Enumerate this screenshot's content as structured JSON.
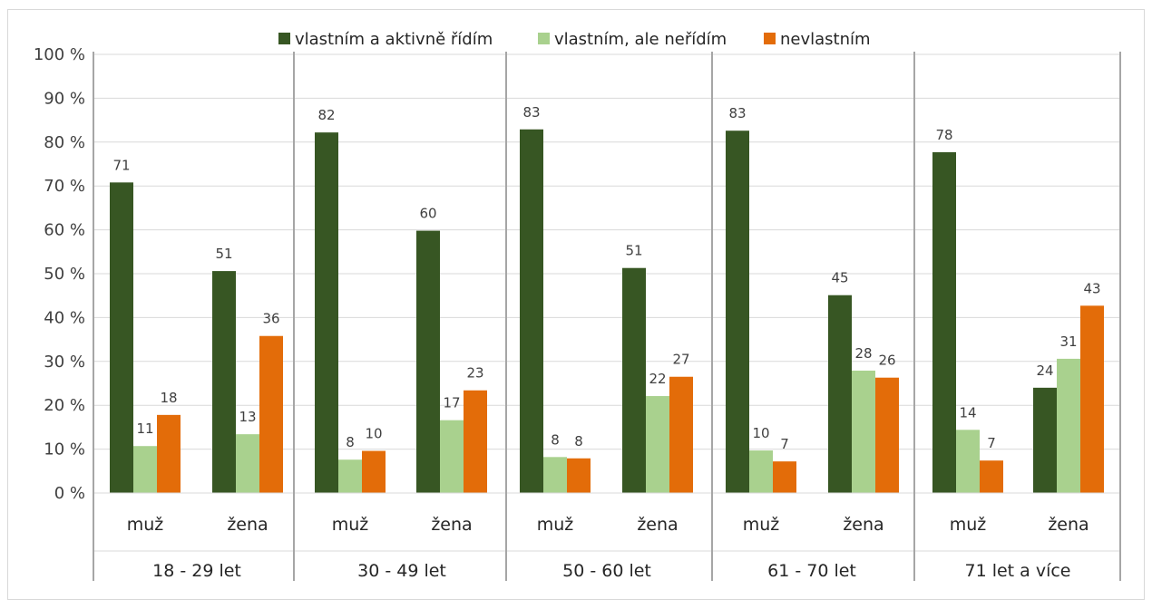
{
  "chart_data": {
    "type": "bar",
    "ylim": [
      0,
      100
    ],
    "y_ticks": [
      "0 %",
      "10 %",
      "20 %",
      "30 %",
      "40 %",
      "50 %",
      "60 %",
      "70 %",
      "80 %",
      "90 %",
      "100 %"
    ],
    "legend_position": "top",
    "grid": true,
    "groups": [
      {
        "label": "18 - 29 let",
        "subcategories": [
          "muž",
          "žena"
        ]
      },
      {
        "label": "30 - 49 let",
        "subcategories": [
          "muž",
          "žena"
        ]
      },
      {
        "label": "50 - 60 let",
        "subcategories": [
          "muž",
          "žena"
        ]
      },
      {
        "label": "61 - 70 let",
        "subcategories": [
          "muž",
          "žena"
        ]
      },
      {
        "label": "71 let a více",
        "subcategories": [
          "muž",
          "žena"
        ]
      }
    ],
    "series": [
      {
        "name": "vlastním a aktivně řídím",
        "color": "#375623",
        "values": [
          70.8,
          50.6,
          82.2,
          59.8,
          82.9,
          51.3,
          82.6,
          45.1,
          77.7,
          24.0
        ],
        "labels": [
          "71",
          "51",
          "82",
          "60",
          "83",
          "51",
          "83",
          "45",
          "78",
          "24"
        ]
      },
      {
        "name": "vlastním, ale neřídím",
        "color": "#a9d18e",
        "values": [
          10.7,
          13.4,
          7.6,
          16.6,
          8.2,
          22.1,
          9.7,
          27.9,
          14.4,
          30.6
        ],
        "labels": [
          "11",
          "13",
          "8",
          "17",
          "8",
          "22",
          "10",
          "28",
          "14",
          "31"
        ]
      },
      {
        "name": "nevlastním",
        "color": "#e36c09",
        "values": [
          17.8,
          35.8,
          9.6,
          23.4,
          7.9,
          26.5,
          7.2,
          26.3,
          7.4,
          42.7
        ],
        "labels": [
          "18",
          "36",
          "10",
          "23",
          "8",
          "27",
          "7",
          "26",
          "7",
          "43"
        ]
      }
    ]
  }
}
